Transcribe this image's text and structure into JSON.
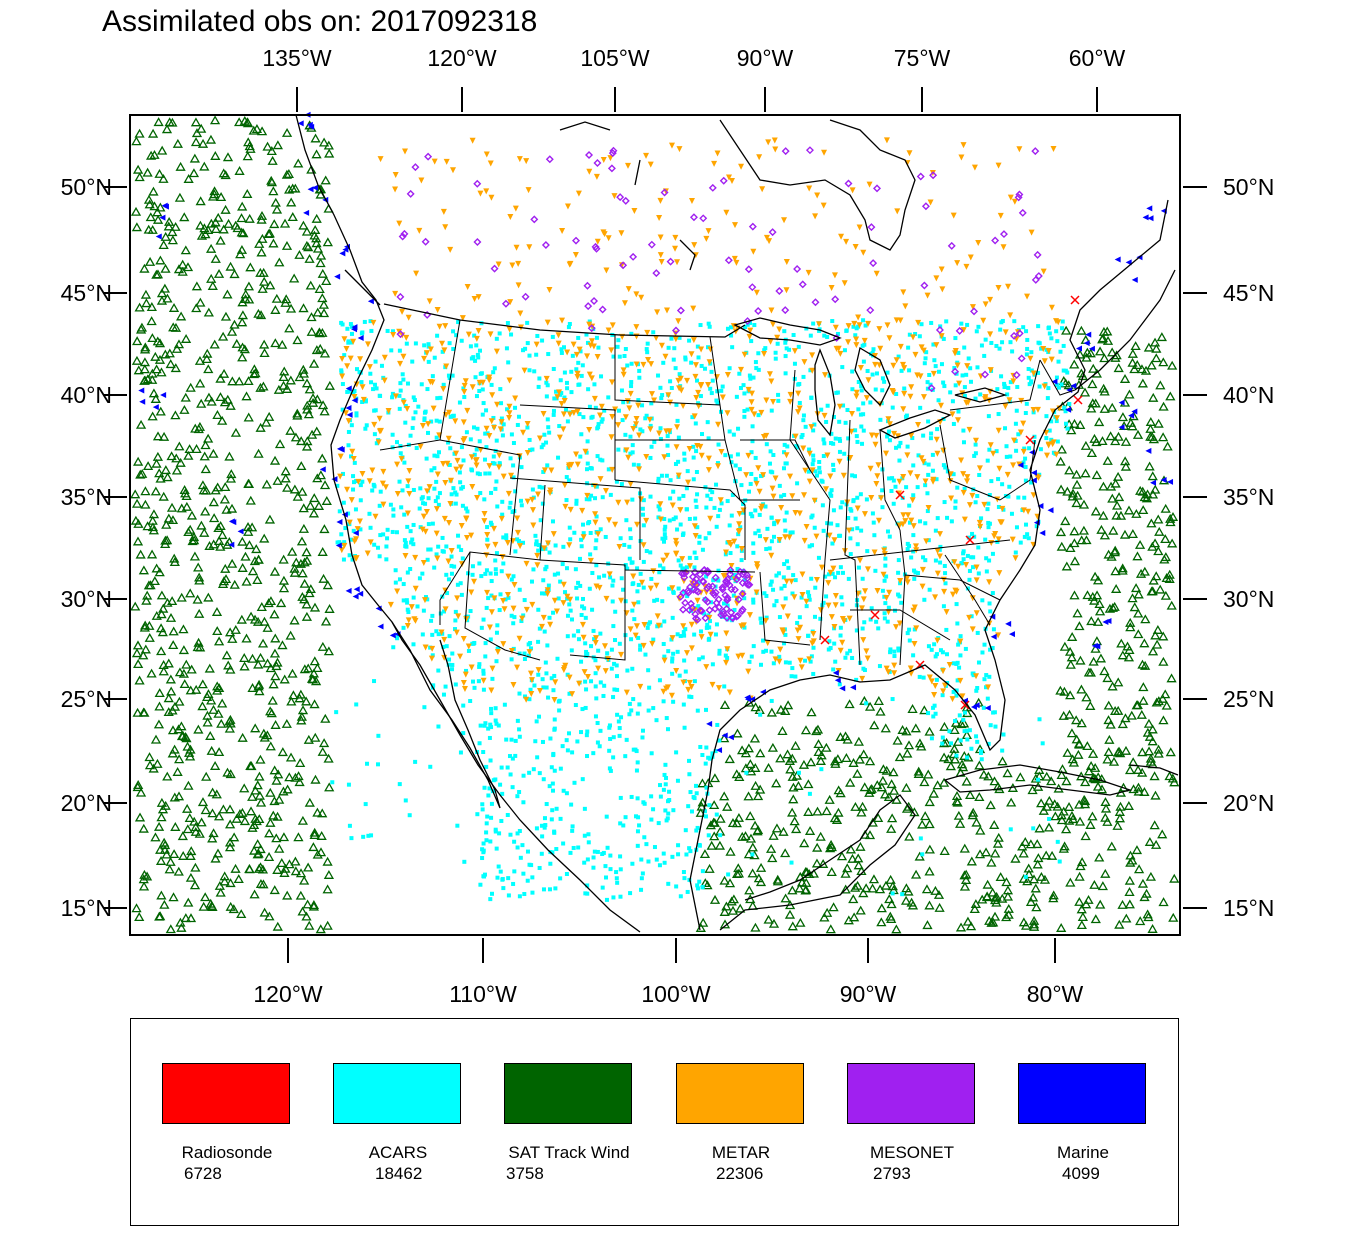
{
  "title": "Assimilated obs on: 2017092318",
  "map": {
    "top_lon_labels": [
      "135°W",
      "120°W",
      "105°W",
      "90°W",
      "75°W",
      "60°W"
    ],
    "bottom_lon_labels": [
      "120°W",
      "110°W",
      "100°W",
      "90°W",
      "80°W"
    ],
    "lat_labels": [
      "50°N",
      "45°N",
      "40°N",
      "35°N",
      "30°N",
      "25°N",
      "20°N",
      "15°N"
    ]
  },
  "legend": {
    "items": [
      {
        "name": "Radiosonde",
        "count": "6728",
        "color": "#ff0000"
      },
      {
        "name": "ACARS",
        "count": "18462",
        "color": "#00ffff"
      },
      {
        "name": "SAT Track Wind",
        "count": "3758",
        "color": "#006400"
      },
      {
        "name": "METAR",
        "count": "22306",
        "color": "#ffa500"
      },
      {
        "name": "MESONET",
        "count": "2793",
        "color": "#a020f0"
      },
      {
        "name": "Marine",
        "count": "4099",
        "color": "#0000ff"
      }
    ]
  }
}
